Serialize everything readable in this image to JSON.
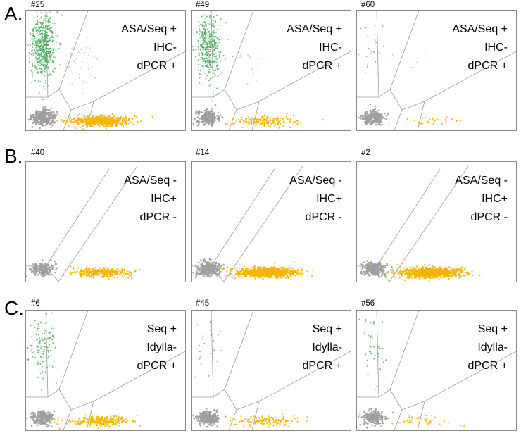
{
  "colors": {
    "negative": "#9e9e9e",
    "mutant": "#3ea64e",
    "wildtype": "#f5b400",
    "other": "#d98c9c",
    "gate": "#9b9b9b"
  },
  "rows": [
    {
      "label": "A.",
      "panels": [
        {
          "id": "#25",
          "lines": [
            "ASA/Seq +",
            "IHC-",
            "dPCR +"
          ]
        },
        {
          "id": "#49",
          "lines": [
            "ASA/Seq +",
            "IHC-",
            "dPCR +"
          ]
        },
        {
          "id": "#60",
          "lines": [
            "ASA/Seq +",
            "IHC-",
            "dPCR +"
          ]
        }
      ]
    },
    {
      "label": "B.",
      "panels": [
        {
          "id": "#40",
          "lines": [
            "ASA/Seq -",
            "IHC+",
            "dPCR -"
          ]
        },
        {
          "id": "#14",
          "lines": [
            "ASA/Seq -",
            "IHC+",
            "dPCR -"
          ]
        },
        {
          "id": "#2",
          "lines": [
            "ASA/Seq -",
            "IHC+",
            "dPCR -"
          ]
        }
      ]
    },
    {
      "label": "C.",
      "panels": [
        {
          "id": "#6",
          "lines": [
            "Seq +",
            "Idylla-",
            "dPCR +"
          ]
        },
        {
          "id": "#45",
          "lines": [
            "Seq +",
            "Idylla-",
            "dPCR +"
          ]
        },
        {
          "id": "#56",
          "lines": [
            "Seq +",
            "Idylla-",
            "dPCR +"
          ]
        }
      ]
    }
  ],
  "chart_data": [
    {
      "type": "scatter",
      "panel": "#25",
      "clusters": [
        {
          "name": "negative",
          "count": 320
        },
        {
          "name": "mutant",
          "count": 520
        },
        {
          "name": "wildtype",
          "count": 560
        },
        {
          "name": "other",
          "count": 45
        }
      ]
    },
    {
      "type": "scatter",
      "panel": "#49",
      "clusters": [
        {
          "name": "negative",
          "count": 220
        },
        {
          "name": "mutant",
          "count": 380
        },
        {
          "name": "wildtype",
          "count": 160
        },
        {
          "name": "other",
          "count": 15
        }
      ]
    },
    {
      "type": "scatter",
      "panel": "#60",
      "clusters": [
        {
          "name": "negative",
          "count": 240
        },
        {
          "name": "mutant",
          "count": 25
        },
        {
          "name": "wildtype",
          "count": 30
        },
        {
          "name": "other",
          "count": 5
        }
      ]
    },
    {
      "type": "scatter",
      "panel": "#40",
      "clusters": [
        {
          "name": "negative",
          "count": 170
        },
        {
          "name": "mutant",
          "count": 0
        },
        {
          "name": "wildtype",
          "count": 320
        },
        {
          "name": "other",
          "count": 0
        }
      ]
    },
    {
      "type": "scatter",
      "panel": "#14",
      "clusters": [
        {
          "name": "negative",
          "count": 260
        },
        {
          "name": "mutant",
          "count": 0
        },
        {
          "name": "wildtype",
          "count": 900
        },
        {
          "name": "other",
          "count": 0
        }
      ]
    },
    {
      "type": "scatter",
      "panel": "#2",
      "clusters": [
        {
          "name": "negative",
          "count": 260
        },
        {
          "name": "mutant",
          "count": 0
        },
        {
          "name": "wildtype",
          "count": 900
        },
        {
          "name": "other",
          "count": 0
        }
      ]
    },
    {
      "type": "scatter",
      "panel": "#6",
      "clusters": [
        {
          "name": "negative",
          "count": 220
        },
        {
          "name": "mutant",
          "count": 110
        },
        {
          "name": "wildtype",
          "count": 260
        },
        {
          "name": "other",
          "count": 0
        }
      ]
    },
    {
      "type": "scatter",
      "panel": "#45",
      "clusters": [
        {
          "name": "negative",
          "count": 230
        },
        {
          "name": "mutant",
          "count": 25
        },
        {
          "name": "wildtype",
          "count": 130
        },
        {
          "name": "other",
          "count": 0
        }
      ]
    },
    {
      "type": "scatter",
      "panel": "#56",
      "clusters": [
        {
          "name": "negative",
          "count": 190
        },
        {
          "name": "mutant",
          "count": 40
        },
        {
          "name": "wildtype",
          "count": 35
        },
        {
          "name": "other",
          "count": 0
        }
      ]
    }
  ]
}
